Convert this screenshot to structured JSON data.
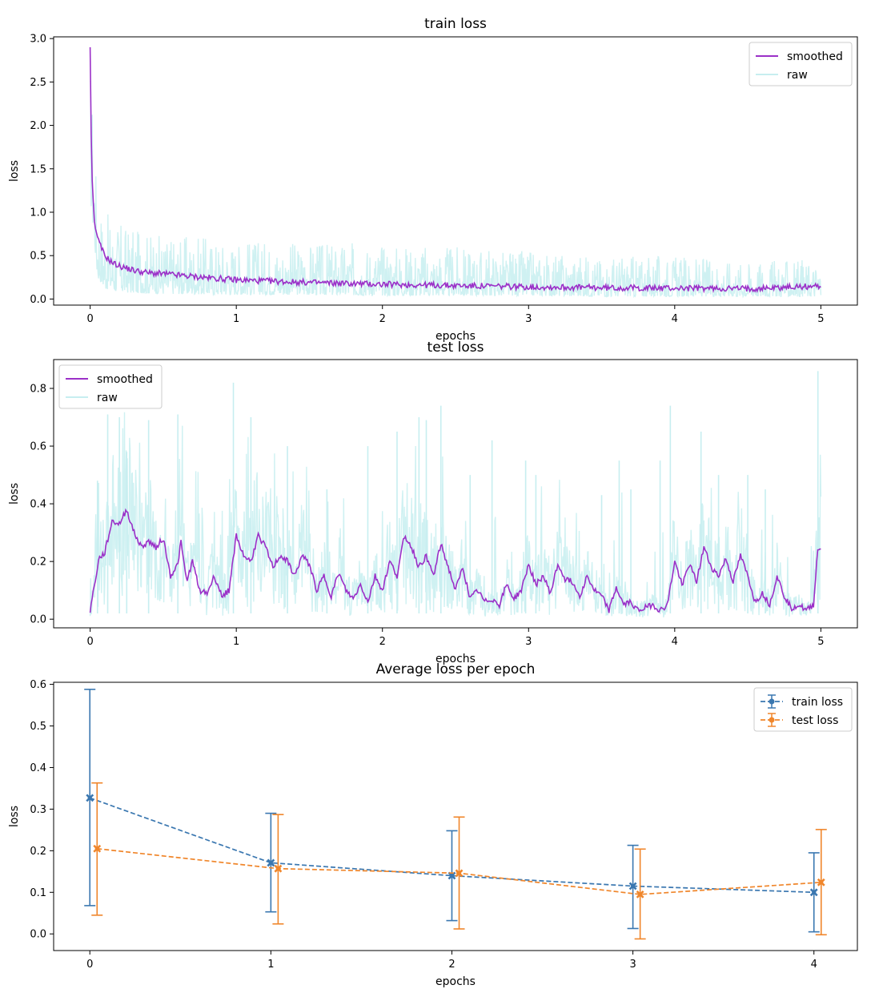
{
  "chart_data": [
    {
      "type": "line",
      "title": "train loss",
      "xlabel": "epochs",
      "ylabel": "loss",
      "xlim": [
        -0.25,
        5.25
      ],
      "ylim": [
        -0.07,
        3.02
      ],
      "xticks": [
        "0",
        "1",
        "2",
        "3",
        "4",
        "5"
      ],
      "yticks": [
        "0.0",
        "0.5",
        "1.0",
        "1.5",
        "2.0",
        "2.5",
        "3.0"
      ],
      "legend_position": "top-right",
      "series": [
        {
          "name": "smoothed",
          "color": "#9b30c8",
          "x": [
            0,
            0.01,
            0.03,
            0.06,
            0.1,
            0.15,
            0.2,
            0.3,
            0.4,
            0.5,
            0.7,
            1.0,
            1.5,
            2.0,
            2.5,
            3.0,
            3.5,
            4.0,
            4.5,
            5.0
          ],
          "y": [
            2.9,
            1.5,
            0.85,
            0.65,
            0.5,
            0.42,
            0.38,
            0.33,
            0.3,
            0.29,
            0.26,
            0.22,
            0.19,
            0.17,
            0.155,
            0.14,
            0.13,
            0.125,
            0.12,
            0.15
          ]
        },
        {
          "name": "raw",
          "color": "#c7eef0",
          "envelope_x": [
            0,
            0.05,
            0.1,
            0.2,
            0.3,
            0.5,
            1.0,
            1.5,
            2.0,
            2.5,
            3.0,
            3.5,
            4.0,
            4.5,
            5.0
          ],
          "envelope_low": [
            1.2,
            0.25,
            0.12,
            0.08,
            0.07,
            0.06,
            0.05,
            0.05,
            0.04,
            0.04,
            0.04,
            0.03,
            0.03,
            0.03,
            0.03
          ],
          "envelope_high": [
            2.9,
            1.2,
            1.0,
            0.9,
            0.8,
            0.75,
            0.7,
            0.65,
            0.65,
            0.6,
            0.55,
            0.5,
            0.5,
            0.45,
            0.45
          ]
        }
      ]
    },
    {
      "type": "line",
      "title": "test loss",
      "xlabel": "epochs",
      "ylabel": "loss",
      "xlim": [
        -0.25,
        5.25
      ],
      "ylim": [
        -0.03,
        0.9
      ],
      "xticks": [
        "0",
        "1",
        "2",
        "3",
        "4",
        "5"
      ],
      "yticks": [
        "0.0",
        "0.2",
        "0.4",
        "0.6",
        "0.8"
      ],
      "legend_position": "top-left",
      "series": [
        {
          "name": "smoothed",
          "color": "#9b30c8",
          "x": [
            0,
            0.03,
            0.06,
            0.1,
            0.15,
            0.2,
            0.25,
            0.3,
            0.35,
            0.4,
            0.45,
            0.5,
            0.55,
            0.6,
            0.62,
            0.66,
            0.7,
            0.75,
            0.8,
            0.85,
            0.9,
            0.95,
            1.0,
            1.05,
            1.1,
            1.15,
            1.2,
            1.25,
            1.3,
            1.35,
            1.4,
            1.45,
            1.5,
            1.55,
            1.6,
            1.65,
            1.7,
            1.75,
            1.8,
            1.85,
            1.9,
            1.95,
            2.0,
            2.05,
            2.1,
            2.15,
            2.2,
            2.25,
            2.3,
            2.35,
            2.4,
            2.45,
            2.5,
            2.55,
            2.6,
            2.65,
            2.7,
            2.75,
            2.8,
            2.85,
            2.9,
            2.95,
            3.0,
            3.05,
            3.1,
            3.15,
            3.2,
            3.25,
            3.3,
            3.35,
            3.4,
            3.45,
            3.5,
            3.55,
            3.6,
            3.65,
            3.7,
            3.75,
            3.8,
            3.85,
            3.9,
            3.95,
            4.0,
            4.05,
            4.1,
            4.15,
            4.2,
            4.25,
            4.3,
            4.35,
            4.4,
            4.45,
            4.5,
            4.55,
            4.6,
            4.65,
            4.7,
            4.75,
            4.8,
            4.85,
            4.9,
            4.95,
            4.98,
            5.0
          ],
          "y": [
            0.03,
            0.12,
            0.21,
            0.23,
            0.34,
            0.33,
            0.38,
            0.3,
            0.25,
            0.27,
            0.25,
            0.28,
            0.15,
            0.19,
            0.27,
            0.13,
            0.2,
            0.1,
            0.09,
            0.15,
            0.08,
            0.1,
            0.29,
            0.22,
            0.2,
            0.29,
            0.25,
            0.18,
            0.22,
            0.2,
            0.15,
            0.22,
            0.19,
            0.1,
            0.15,
            0.08,
            0.16,
            0.1,
            0.07,
            0.12,
            0.06,
            0.15,
            0.1,
            0.2,
            0.15,
            0.29,
            0.25,
            0.18,
            0.22,
            0.15,
            0.26,
            0.18,
            0.1,
            0.18,
            0.07,
            0.1,
            0.06,
            0.07,
            0.05,
            0.12,
            0.07,
            0.1,
            0.19,
            0.12,
            0.15,
            0.09,
            0.19,
            0.14,
            0.13,
            0.08,
            0.15,
            0.1,
            0.08,
            0.03,
            0.11,
            0.05,
            0.06,
            0.03,
            0.04,
            0.05,
            0.03,
            0.05,
            0.2,
            0.12,
            0.19,
            0.13,
            0.25,
            0.18,
            0.15,
            0.21,
            0.13,
            0.22,
            0.15,
            0.06,
            0.09,
            0.05,
            0.15,
            0.08,
            0.04,
            0.05,
            0.03,
            0.05,
            0.25,
            0.24
          ]
        },
        {
          "name": "raw",
          "color": "#c7eef0",
          "spikes": [
            [
              0.05,
              0.48
            ],
            [
              0.12,
              0.71
            ],
            [
              0.2,
              0.7
            ],
            [
              0.25,
              0.58
            ],
            [
              0.4,
              0.69
            ],
            [
              0.6,
              0.71
            ],
            [
              0.98,
              0.82
            ],
            [
              1.1,
              0.7
            ],
            [
              1.35,
              0.6
            ],
            [
              1.62,
              0.45
            ],
            [
              1.9,
              0.6
            ],
            [
              2.1,
              0.65
            ],
            [
              2.25,
              0.7
            ],
            [
              2.3,
              0.69
            ],
            [
              2.4,
              0.74
            ],
            [
              2.6,
              0.5
            ],
            [
              2.75,
              0.62
            ],
            [
              2.98,
              0.55
            ],
            [
              3.05,
              0.5
            ],
            [
              3.5,
              0.43
            ],
            [
              3.62,
              0.55
            ],
            [
              3.7,
              0.45
            ],
            [
              3.9,
              0.55
            ],
            [
              3.97,
              0.74
            ],
            [
              4.18,
              0.65
            ],
            [
              4.3,
              0.5
            ],
            [
              4.5,
              0.5
            ],
            [
              4.62,
              0.45
            ],
            [
              4.98,
              0.86
            ]
          ]
        }
      ]
    },
    {
      "type": "line",
      "title": "Average loss per epoch",
      "xlabel": "epochs",
      "ylabel": "loss",
      "xlim": [
        -0.2,
        4.24
      ],
      "ylim": [
        -0.04,
        0.605
      ],
      "xticks": [
        "0",
        "1",
        "2",
        "3",
        "4"
      ],
      "yticks": [
        "0.0",
        "0.1",
        "0.2",
        "0.3",
        "0.4",
        "0.5",
        "0.6"
      ],
      "legend_position": "top-right",
      "series": [
        {
          "name": "train loss",
          "color": "#3a77b0",
          "x": [
            0,
            1,
            2,
            3,
            4
          ],
          "y": [
            0.327,
            0.171,
            0.14,
            0.115,
            0.1
          ],
          "yerr_low": [
            0.068,
            0.053,
            0.032,
            0.013,
            0.005
          ],
          "yerr_high": [
            0.588,
            0.29,
            0.248,
            0.213,
            0.195
          ]
        },
        {
          "name": "test loss",
          "color": "#f0862b",
          "x": [
            0.04,
            1.04,
            2.04,
            3.04,
            4.04
          ],
          "y": [
            0.205,
            0.157,
            0.146,
            0.095,
            0.124
          ],
          "yerr_low": [
            0.045,
            0.024,
            0.012,
            -0.012,
            -0.002
          ],
          "yerr_high": [
            0.363,
            0.287,
            0.281,
            0.204,
            0.251
          ]
        }
      ]
    }
  ]
}
